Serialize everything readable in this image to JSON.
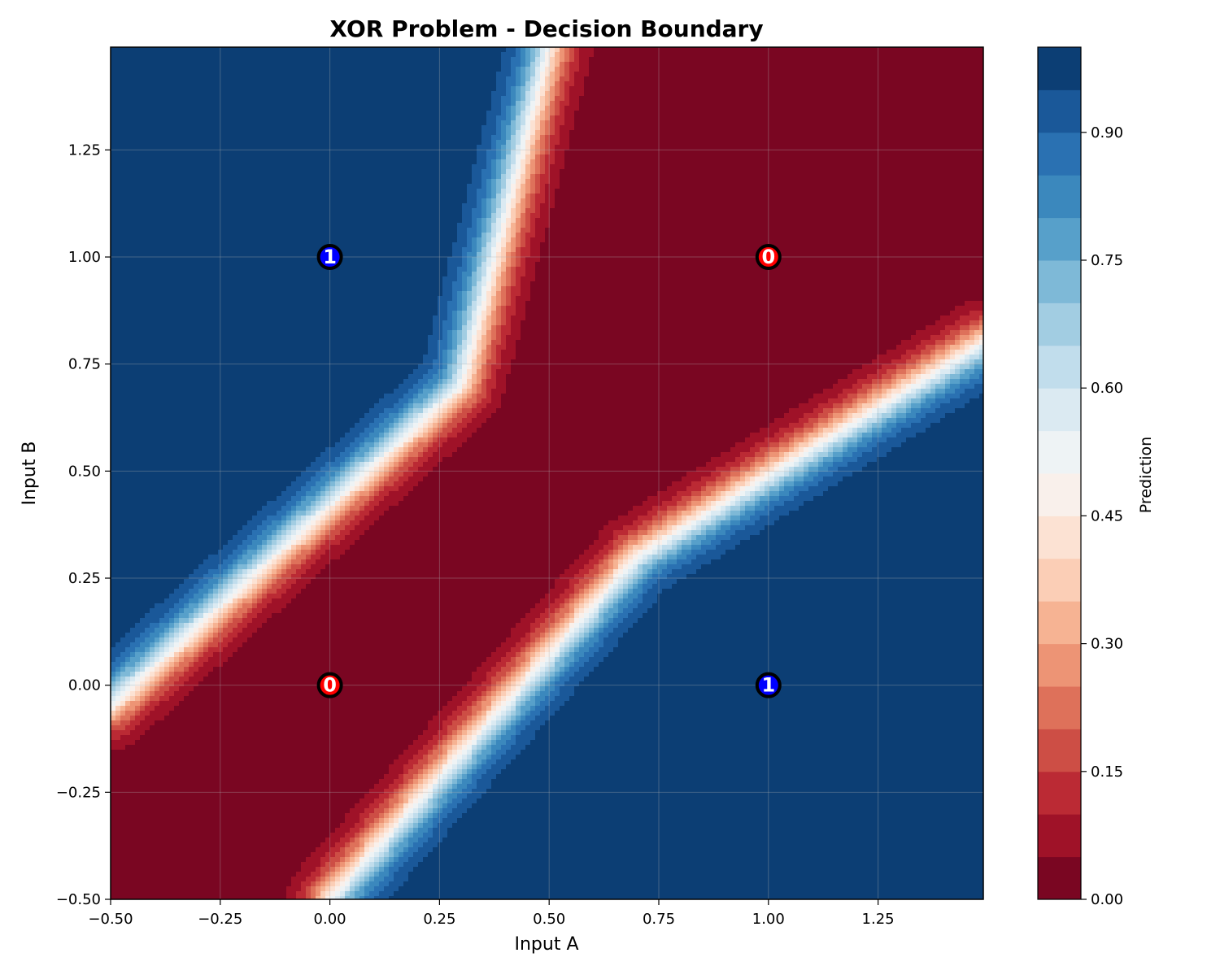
{
  "chart_data": {
    "type": "heatmap",
    "title": "XOR Problem - Decision Boundary",
    "xlabel": "Input A",
    "ylabel": "Input B",
    "xlim": [
      -0.5,
      1.49
    ],
    "ylim": [
      -0.5,
      1.49
    ],
    "xticks": [
      "−0.50",
      "−0.25",
      "0.00",
      "0.25",
      "0.50",
      "0.75",
      "1.00",
      "1.25"
    ],
    "xtick_values": [
      -0.5,
      -0.25,
      0.0,
      0.25,
      0.5,
      0.75,
      1.0,
      1.25
    ],
    "yticks": [
      "−0.50",
      "−0.25",
      "0.00",
      "0.25",
      "0.50",
      "0.75",
      "1.00",
      "1.25"
    ],
    "ytick_values": [
      -0.5,
      -0.25,
      0.0,
      0.25,
      0.5,
      0.75,
      1.0,
      1.25
    ],
    "grid": true,
    "colormap": "RdBu",
    "colorbar": {
      "label": "Prediction",
      "range": [
        0.0,
        1.0
      ],
      "levels": 20,
      "ticks": [
        "0.00",
        "0.15",
        "0.30",
        "0.45",
        "0.60",
        "0.75",
        "0.90"
      ],
      "tick_values": [
        0.0,
        0.15,
        0.3,
        0.45,
        0.6,
        0.75,
        0.9
      ]
    },
    "boundary_bands": [
      {
        "name": "upper-left",
        "path": [
          [
            -0.5,
            -0.05
          ],
          [
            0.3,
            0.7
          ],
          [
            0.5,
            1.49
          ]
        ]
      },
      {
        "name": "lower-right",
        "path": [
          [
            0.0,
            -0.5
          ],
          [
            0.7,
            0.3
          ],
          [
            1.49,
            0.8
          ]
        ]
      }
    ],
    "points": [
      {
        "x": 0,
        "y": 0,
        "label": "0",
        "color": "#ff0000"
      },
      {
        "x": 0,
        "y": 1,
        "label": "1",
        "color": "#0000ff"
      },
      {
        "x": 1,
        "y": 0,
        "label": "1",
        "color": "#0000ff"
      },
      {
        "x": 1,
        "y": 1,
        "label": "0",
        "color": "#ff0000"
      }
    ]
  }
}
